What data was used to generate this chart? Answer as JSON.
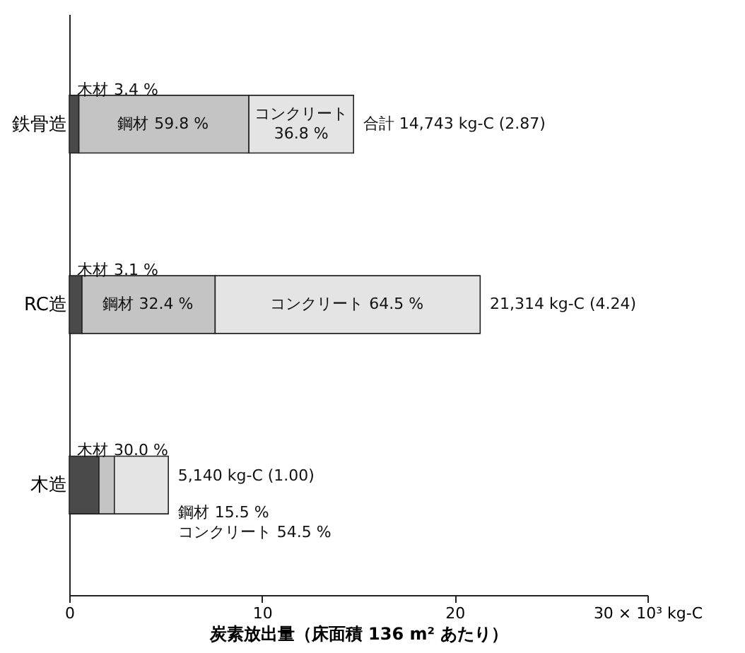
{
  "chart_data": {
    "type": "bar",
    "orientation": "horizontal",
    "stacked": true,
    "categories": [
      "鉄骨造",
      "RC造",
      "木造"
    ],
    "series": [
      {
        "name": "木材",
        "color": "#4a4a4a",
        "values": [
          0.5,
          0.66,
          1.54
        ]
      },
      {
        "name": "鋼材",
        "color": "#c4c4c4",
        "values": [
          8.82,
          6.91,
          0.8
        ]
      },
      {
        "name": "コンクリート",
        "color": "#e4e4e4",
        "values": [
          5.43,
          13.75,
          2.8
        ]
      }
    ],
    "annotations": [
      "3.4 %",
      "59.8 %",
      "36.8 %",
      "3.1 %",
      "32.4 %",
      "64.5 %",
      "30.0 %",
      "15.5 %",
      "54.5 %"
    ],
    "totals": [
      "合計 14,743 kg-C (2.87)",
      "21,314 kg-C (4.24)",
      "5,140 kg-C (1.00)"
    ],
    "xlabel": "炭素放出量（床面積 136 m² あたり）",
    "xlim": [
      0,
      30
    ],
    "xticks": [
      0,
      10,
      20,
      {
        "value": 30,
        "label": "30 × 10³ kg-C"
      }
    ],
    "grid": false,
    "legend": false
  }
}
